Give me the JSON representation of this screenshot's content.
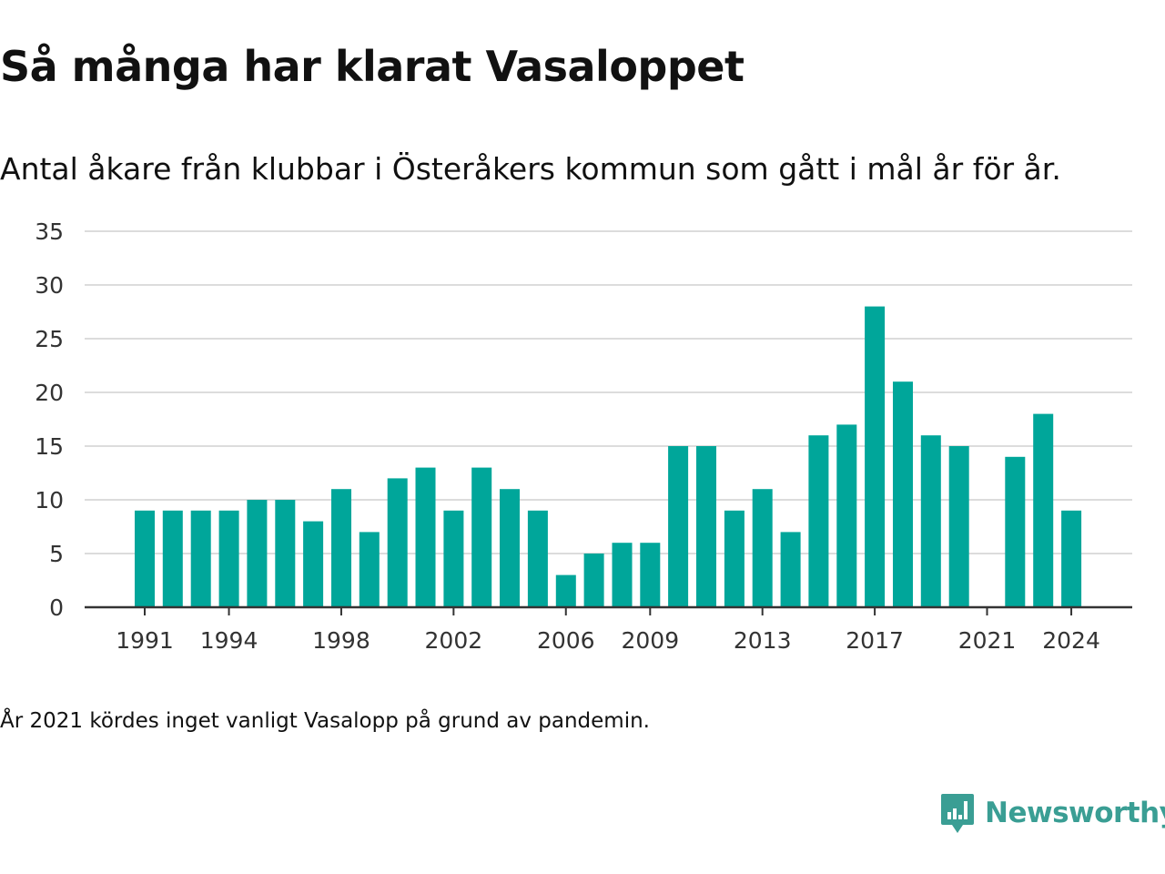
{
  "header": {
    "title": "Så många har klarat Vasaloppet",
    "subtitle": "Antal åkare från klubbar i Österåkers kommun som gått i mål år för år."
  },
  "footer": {
    "note": "År 2021 kördes inget vanligt Vasalopp på grund av pandemin.",
    "brand": "Newsworthy",
    "brand_icon": "newsworthy-logo-icon",
    "brand_color": "#3a9e94"
  },
  "colors": {
    "bar": "#00a69a",
    "grid": "#dcdcdc",
    "axis": "#333333",
    "tick_text": "#333333"
  },
  "chart_data": {
    "type": "bar",
    "title": "Så många har klarat Vasaloppet",
    "subtitle": "Antal åkare från klubbar i Österåkers kommun som gått i mål år för år.",
    "xlabel": "",
    "ylabel": "",
    "x": [
      1991,
      1992,
      1993,
      1994,
      1995,
      1996,
      1997,
      1998,
      1999,
      2000,
      2001,
      2002,
      2003,
      2004,
      2005,
      2006,
      2007,
      2008,
      2009,
      2010,
      2011,
      2012,
      2013,
      2014,
      2015,
      2016,
      2017,
      2018,
      2019,
      2020,
      2021,
      2022,
      2023,
      2024
    ],
    "values": [
      9,
      9,
      9,
      9,
      10,
      10,
      8,
      11,
      7,
      12,
      13,
      9,
      13,
      11,
      9,
      3,
      5,
      6,
      6,
      15,
      15,
      9,
      11,
      7,
      16,
      17,
      28,
      21,
      16,
      15,
      null,
      14,
      18,
      9
    ],
    "ylim": [
      0,
      35
    ],
    "yticks": [
      0,
      5,
      10,
      15,
      20,
      25,
      30,
      35
    ],
    "xticks": [
      1991,
      1994,
      1998,
      2002,
      2006,
      2009,
      2013,
      2017,
      2021,
      2024
    ],
    "grid": true
  }
}
